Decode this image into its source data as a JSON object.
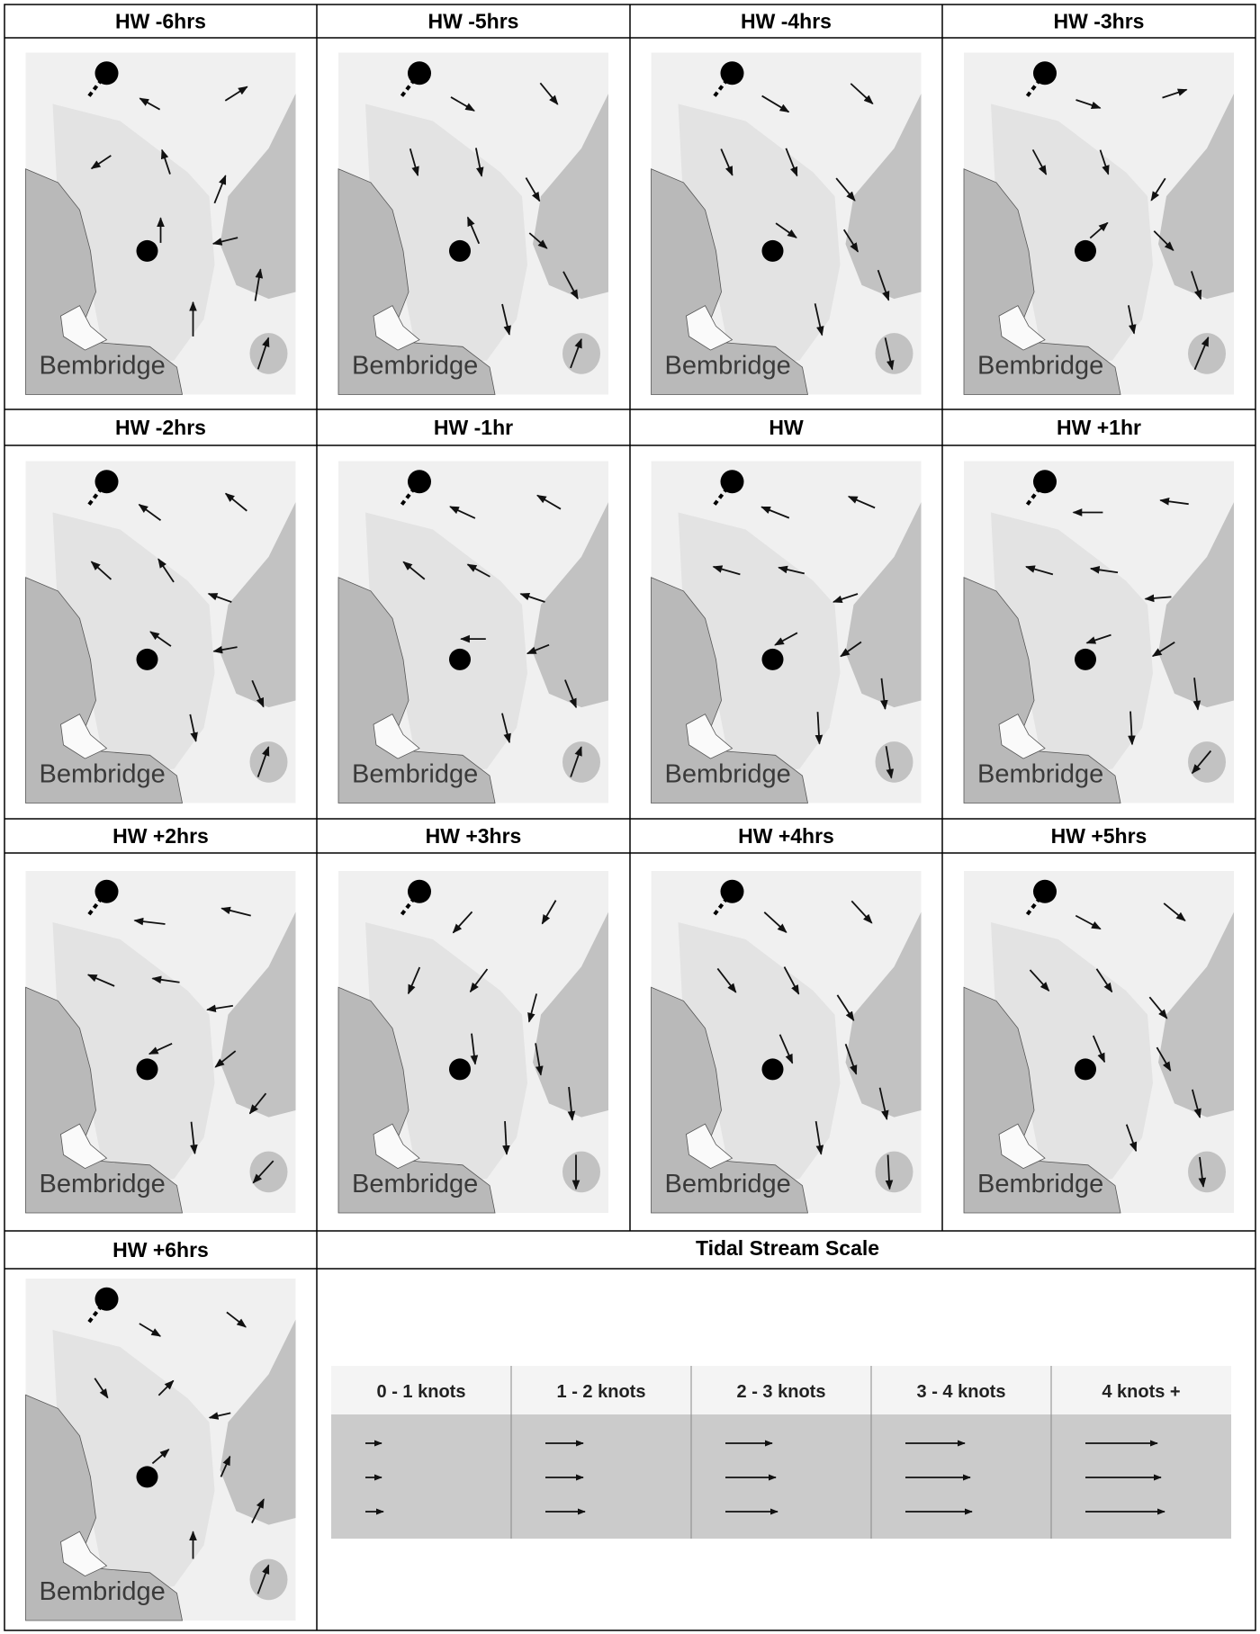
{
  "panels": [
    {
      "label": "HW -6hrs",
      "place": "Bembridge",
      "arrows": [
        [
          -0.45,
          -0.25
        ],
        [
          0.55,
          -0.35
        ],
        [
          -0.45,
          0.3
        ],
        [
          -0.2,
          -0.6
        ],
        [
          0.3,
          -0.75
        ],
        [
          0.0,
          -0.6
        ],
        [
          -0.6,
          0.15
        ],
        [
          0.15,
          -0.9
        ],
        [
          0.0,
          -1.0
        ],
        [
          0.3,
          -0.9
        ]
      ]
    },
    {
      "label": "HW -5hrs",
      "place": "Bembridge",
      "arrows": [
        [
          0.6,
          0.35
        ],
        [
          0.45,
          0.55
        ],
        [
          0.2,
          0.7
        ],
        [
          0.15,
          0.75
        ],
        [
          0.35,
          0.6
        ],
        [
          -0.3,
          -0.7
        ],
        [
          0.4,
          0.35
        ],
        [
          0.4,
          0.75
        ],
        [
          0.2,
          0.85
        ],
        [
          0.3,
          -0.8
        ]
      ]
    },
    {
      "label": "HW -4hrs",
      "place": "Bembridge",
      "arrows": [
        [
          0.75,
          0.45
        ],
        [
          0.6,
          0.55
        ],
        [
          0.3,
          0.7
        ],
        [
          0.3,
          0.75
        ],
        [
          0.5,
          0.6
        ],
        [
          0.5,
          0.35
        ],
        [
          0.35,
          0.55
        ],
        [
          0.3,
          0.85
        ],
        [
          0.2,
          0.9
        ],
        [
          0.2,
          0.9
        ]
      ]
    },
    {
      "label": "HW -3hrs",
      "place": "Bembridge",
      "arrows": [
        [
          0.6,
          0.2
        ],
        [
          0.6,
          -0.2
        ],
        [
          0.35,
          0.65
        ],
        [
          0.2,
          0.6
        ],
        [
          -0.35,
          0.55
        ],
        [
          0.4,
          -0.35
        ],
        [
          0.5,
          0.5
        ],
        [
          0.25,
          0.75
        ],
        [
          0.15,
          0.75
        ],
        [
          0.4,
          -0.95
        ]
      ]
    },
    {
      "label": "HW -2hrs",
      "place": "Bembridge",
      "arrows": [
        [
          -0.55,
          -0.4
        ],
        [
          -0.55,
          -0.45
        ],
        [
          -0.5,
          -0.45
        ],
        [
          -0.4,
          -0.6
        ],
        [
          -0.55,
          -0.2
        ],
        [
          -0.5,
          -0.35
        ],
        [
          -0.55,
          0.1
        ],
        [
          0.3,
          0.7
        ],
        [
          0.15,
          0.7
        ],
        [
          0.3,
          -0.85
        ]
      ]
    },
    {
      "label": "HW -1hr",
      "place": "Bembridge",
      "arrows": [
        [
          -0.65,
          -0.3
        ],
        [
          -0.6,
          -0.35
        ],
        [
          -0.55,
          -0.45
        ],
        [
          -0.55,
          -0.3
        ],
        [
          -0.6,
          -0.2
        ],
        [
          -0.6,
          0.0
        ],
        [
          -0.5,
          0.2
        ],
        [
          0.3,
          0.75
        ],
        [
          0.2,
          0.8
        ],
        [
          0.3,
          -0.85
        ]
      ]
    },
    {
      "label": "HW",
      "place": "Bembridge",
      "arrows": [
        [
          -0.75,
          -0.3
        ],
        [
          -0.7,
          -0.3
        ],
        [
          -0.7,
          -0.2
        ],
        [
          -0.65,
          -0.15
        ],
        [
          -0.6,
          0.2
        ],
        [
          -0.55,
          0.3
        ],
        [
          -0.5,
          0.35
        ],
        [
          0.1,
          0.85
        ],
        [
          0.05,
          0.9
        ],
        [
          0.15,
          0.9
        ]
      ]
    },
    {
      "label": "HW +1hr",
      "place": "Bembridge",
      "arrows": [
        [
          -0.8,
          0.0
        ],
        [
          -0.75,
          -0.1
        ],
        [
          -0.7,
          -0.2
        ],
        [
          -0.7,
          -0.1
        ],
        [
          -0.65,
          0.05
        ],
        [
          -0.6,
          0.2
        ],
        [
          -0.55,
          0.35
        ],
        [
          0.1,
          0.9
        ],
        [
          0.05,
          0.95
        ],
        [
          -0.5,
          0.6
        ]
      ]
    },
    {
      "label": "HW +2hrs",
      "place": "Bembridge",
      "arrows": [
        [
          -0.85,
          -0.1
        ],
        [
          -0.8,
          -0.2
        ],
        [
          -0.7,
          -0.3
        ],
        [
          -0.7,
          -0.1
        ],
        [
          -0.65,
          0.1
        ],
        [
          -0.55,
          0.25
        ],
        [
          -0.5,
          0.4
        ],
        [
          -0.4,
          0.5
        ],
        [
          0.1,
          0.9
        ],
        [
          -0.55,
          0.6
        ]
      ]
    },
    {
      "label": "HW +3hrs",
      "place": "Bembridge",
      "arrows": [
        [
          -0.5,
          0.55
        ],
        [
          -0.35,
          0.6
        ],
        [
          -0.3,
          0.7
        ],
        [
          -0.45,
          0.6
        ],
        [
          -0.2,
          0.75
        ],
        [
          0.1,
          0.85
        ],
        [
          0.15,
          0.9
        ],
        [
          0.1,
          0.95
        ],
        [
          0.05,
          0.95
        ],
        [
          0.0,
          1.0
        ]
      ]
    },
    {
      "label": "HW +4hrs",
      "place": "Bembridge",
      "arrows": [
        [
          0.6,
          0.55
        ],
        [
          0.55,
          0.6
        ],
        [
          0.5,
          0.65
        ],
        [
          0.4,
          0.75
        ],
        [
          0.45,
          0.7
        ],
        [
          0.35,
          0.8
        ],
        [
          0.3,
          0.85
        ],
        [
          0.2,
          0.9
        ],
        [
          0.15,
          0.95
        ],
        [
          0.05,
          1.0
        ]
      ]
    },
    {
      "label": "HW +5hrs",
      "place": "Bembridge",
      "arrows": [
        [
          0.65,
          0.35
        ],
        [
          0.55,
          0.45
        ],
        [
          0.5,
          0.55
        ],
        [
          0.4,
          0.6
        ],
        [
          0.45,
          0.55
        ],
        [
          0.3,
          0.7
        ],
        [
          0.35,
          0.6
        ],
        [
          0.2,
          0.75
        ],
        [
          0.25,
          0.7
        ],
        [
          0.1,
          0.8
        ]
      ]
    },
    {
      "label": "HW +6hrs",
      "place": "Bembridge",
      "arrows": [
        [
          0.5,
          0.3
        ],
        [
          0.45,
          0.35
        ],
        [
          0.3,
          0.45
        ],
        [
          0.3,
          -0.3
        ],
        [
          -0.45,
          0.1
        ],
        [
          0.35,
          -0.3
        ],
        [
          0.2,
          -0.45
        ],
        [
          0.3,
          -0.6
        ],
        [
          0.0,
          -0.7
        ],
        [
          0.3,
          -0.8
        ]
      ]
    }
  ],
  "scale": {
    "title": "Tidal Stream Scale",
    "bands": [
      {
        "label": "0 - 1 knots",
        "arrow_lengths": [
          0.09,
          0.09,
          0.1
        ]
      },
      {
        "label": "1 - 2 knots",
        "arrow_lengths": [
          0.21,
          0.21,
          0.22
        ]
      },
      {
        "label": "2 - 3 knots",
        "arrow_lengths": [
          0.26,
          0.28,
          0.29
        ]
      },
      {
        "label": "3 - 4 knots",
        "arrow_lengths": [
          0.33,
          0.36,
          0.37
        ]
      },
      {
        "label": "4 knots +",
        "arrow_lengths": [
          0.4,
          0.42,
          0.44
        ]
      }
    ]
  },
  "colors": {
    "grid": "#000000",
    "deep_water": "#f0f0f0",
    "channel": "#e3e3e3",
    "shallows": "#c2c2c2",
    "land": "#b9b9b9",
    "marker": "#000000",
    "scale_header": "#f4f4f4",
    "scale_body": "#cbcbcb"
  }
}
